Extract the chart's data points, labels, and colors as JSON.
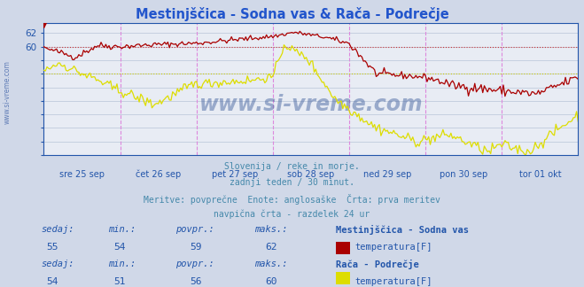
{
  "title": "Mestinjščica - Sodna vas & Rača - Podrečje",
  "title_color": "#2255cc",
  "bg_color": "#d0d8e8",
  "plot_bg_color": "#e8ecf4",
  "grid_color": "#b8c4d8",
  "xlabel_dates": [
    "sre 25 sep",
    "čet 26 sep",
    "pet 27 sep",
    "sob 28 sep",
    "ned 29 sep",
    "pon 30 sep",
    "tor 01 okt"
  ],
  "ylim": [
    44,
    63.5
  ],
  "xlim": [
    0,
    336
  ],
  "vline_positions": [
    48,
    96,
    144,
    192,
    240,
    288
  ],
  "hline_red_y": 60,
  "hline_yellow_y": 56,
  "red_color": "#aa0000",
  "yellow_color": "#dddd00",
  "vline_color": "#dd88dd",
  "hline_red_color": "#cc3333",
  "hline_yellow_color": "#cccc00",
  "axis_color": "#2255aa",
  "tick_label_color": "#2255aa",
  "watermark": "www.si-vreme.com",
  "watermark_color": "#4466aa",
  "sub_text1": "Slovenija / reke in morje.",
  "sub_text2": "zadnji teden / 30 minut.",
  "sub_text3": "Meritve: povprečne  Enote: anglosaške  Črta: prva meritev",
  "sub_text4": "navpična črta - razdelek 24 ur",
  "sub_color": "#4488aa",
  "legend1_label": "Mestinjščica - Sodna vas",
  "legend1_sublabel": "temperatura[F]",
  "legend2_label": "Rača - Podrečje",
  "legend2_sublabel": "temperatura[F]",
  "stats1": {
    "sedaj": 55,
    "min": 54,
    "povpr": 59,
    "maks": 62
  },
  "stats2": {
    "sedaj": 54,
    "min": 51,
    "povpr": 56,
    "maks": 60
  },
  "n_points": 337
}
